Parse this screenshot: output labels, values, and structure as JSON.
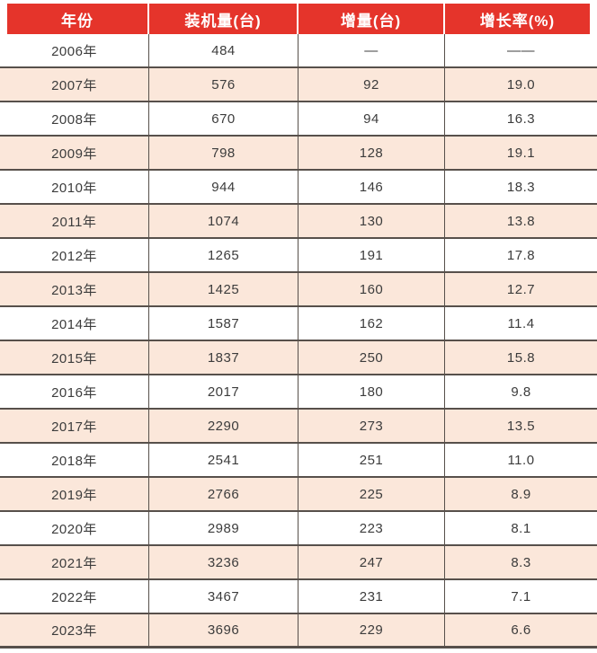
{
  "chart_data": {
    "type": "table",
    "title": "",
    "columns": [
      "年份",
      "装机量(台)",
      "增量(台)",
      "增长率(%)"
    ],
    "rows": [
      [
        "2006年",
        "484",
        "—",
        "——"
      ],
      [
        "2007年",
        "576",
        "92",
        "19.0"
      ],
      [
        "2008年",
        "670",
        "94",
        "16.3"
      ],
      [
        "2009年",
        "798",
        "128",
        "19.1"
      ],
      [
        "2010年",
        "944",
        "146",
        "18.3"
      ],
      [
        "2011年",
        "1074",
        "130",
        "13.8"
      ],
      [
        "2012年",
        "1265",
        "191",
        "17.8"
      ],
      [
        "2013年",
        "1425",
        "160",
        "12.7"
      ],
      [
        "2014年",
        "1587",
        "162",
        "11.4"
      ],
      [
        "2015年",
        "1837",
        "250",
        "15.8"
      ],
      [
        "2016年",
        "2017",
        "180",
        "9.8"
      ],
      [
        "2017年",
        "2290",
        "273",
        "13.5"
      ],
      [
        "2018年",
        "2541",
        "251",
        "11.0"
      ],
      [
        "2019年",
        "2766",
        "225",
        "8.9"
      ],
      [
        "2020年",
        "2989",
        "223",
        "8.1"
      ],
      [
        "2021年",
        "3236",
        "247",
        "8.3"
      ],
      [
        "2022年",
        "3467",
        "231",
        "7.1"
      ],
      [
        "2023年",
        "3696",
        "229",
        "6.6"
      ]
    ],
    "layout_hints": {
      "striped_rows": true,
      "stripe_pattern": "even data rows peach, odd white, starting white at 2006",
      "header_style": "red blocks with white gaps, inset from table edges"
    }
  },
  "colors": {
    "header_bg": "#e5342b",
    "header_text": "#ffffff",
    "row_alt_bg": "#fbe7da",
    "border": "#57504b",
    "text": "#3c3c3c",
    "page_bg": "#ffffff"
  }
}
